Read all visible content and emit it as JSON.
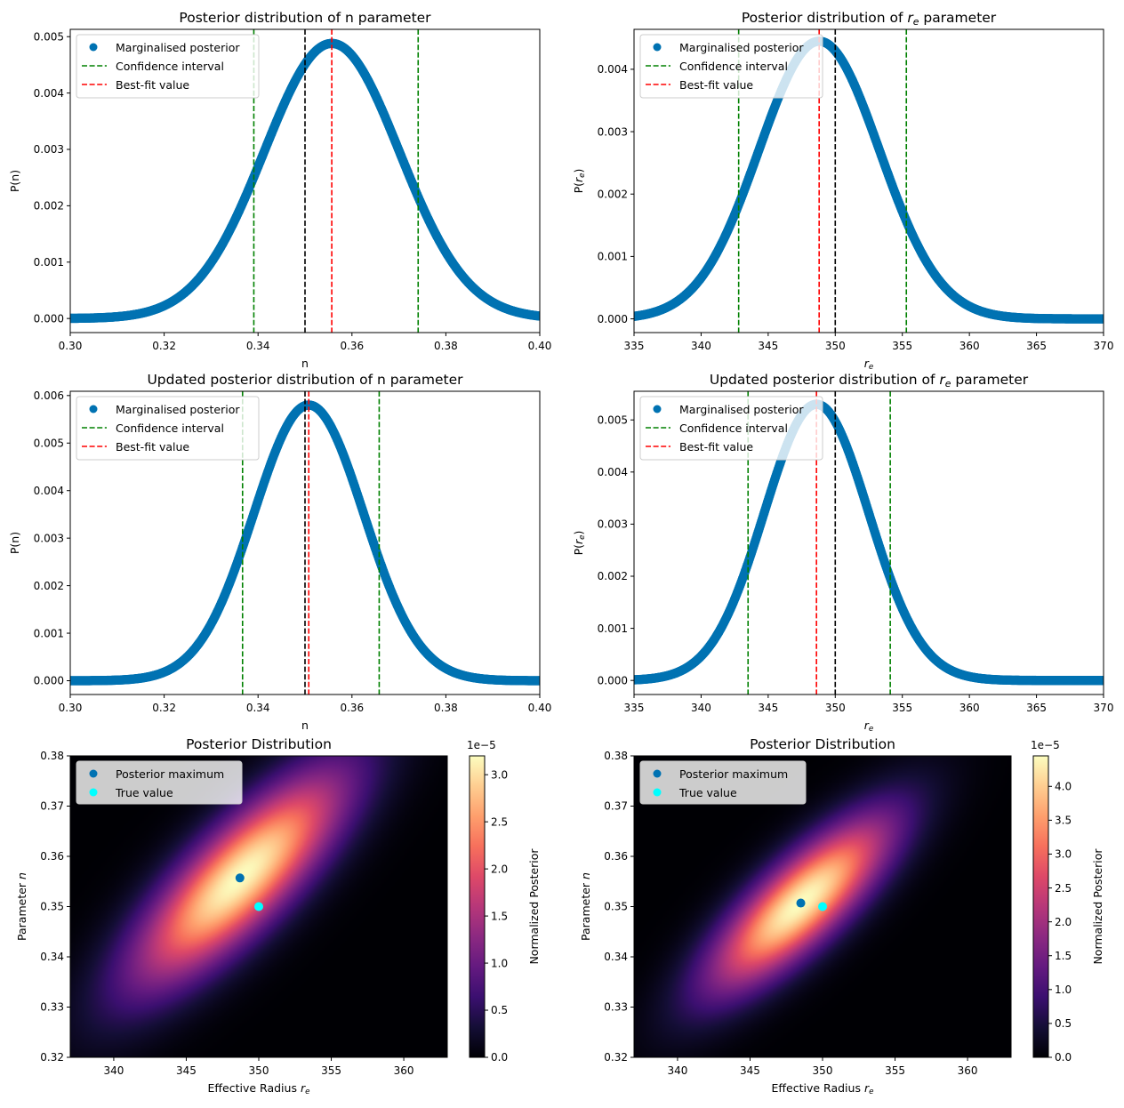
{
  "colors": {
    "posterior": "#0072b2",
    "confidence": "#008000",
    "bestfit": "#ff0000",
    "truth": "#000000",
    "true_marker": "#00ffff"
  },
  "chart_data": [
    {
      "type": "scatter",
      "title": "Posterior distribution of n parameter",
      "xlabel": "n",
      "ylabel": "P(n)",
      "xlim": [
        0.3,
        0.4
      ],
      "ylim": [
        -0.00025,
        0.00513
      ],
      "xticks": [
        "0.30",
        "0.32",
        "0.34",
        "0.36",
        "0.38",
        "0.40"
      ],
      "yticks": [
        "0.000",
        "0.001",
        "0.002",
        "0.003",
        "0.004",
        "0.005"
      ],
      "legend": [
        "Marginalised posterior",
        "Confidence interval",
        "Best-fit value"
      ],
      "legend_loc": "upper left",
      "curve": {
        "mean": 0.3557,
        "sigma": 0.0144,
        "peak": 0.00488
      },
      "vlines": {
        "confidence": [
          0.3391,
          0.3741
        ],
        "bestfit": 0.3557,
        "truth": 0.35
      }
    },
    {
      "type": "scatter",
      "title": "Posterior distribution of r_e parameter",
      "xlabel": "r_e",
      "ylabel": "P(r_e)",
      "xlim": [
        335,
        370
      ],
      "ylim": [
        -0.00022,
        0.00464
      ],
      "xticks": [
        "335",
        "340",
        "345",
        "350",
        "355",
        "360",
        "365",
        "370"
      ],
      "yticks": [
        "0.000",
        "0.001",
        "0.002",
        "0.003",
        "0.004"
      ],
      "legend": [
        "Marginalised posterior",
        "Confidence interval",
        "Best-fit value"
      ],
      "legend_loc": "upper left",
      "curve": {
        "mean": 348.8,
        "sigma": 4.5,
        "peak": 0.00445
      },
      "vlines": {
        "confidence": [
          342.8,
          355.3
        ],
        "bestfit": 348.8,
        "truth": 350
      }
    },
    {
      "type": "scatter",
      "title": "Updated posterior distribution of n parameter",
      "xlabel": "n",
      "ylabel": "P(n)",
      "xlim": [
        0.3,
        0.4
      ],
      "ylim": [
        -0.00029,
        0.00609
      ],
      "xticks": [
        "0.30",
        "0.32",
        "0.34",
        "0.36",
        "0.38",
        "0.40"
      ],
      "yticks": [
        "0.000",
        "0.001",
        "0.002",
        "0.003",
        "0.004",
        "0.005",
        "0.006"
      ],
      "legend": [
        "Marginalised posterior",
        "Confidence interval",
        "Best-fit value"
      ],
      "legend_loc": "upper left",
      "curve": {
        "mean": 0.3508,
        "sigma": 0.0117,
        "peak": 0.0058
      },
      "vlines": {
        "confidence": [
          0.3367,
          0.3658
        ],
        "bestfit": 0.3508,
        "truth": 0.35
      }
    },
    {
      "type": "scatter",
      "title": "Updated posterior distribution of r_e parameter",
      "xlabel": "r_e",
      "ylabel": "P(r_e)",
      "xlim": [
        335,
        370
      ],
      "ylim": [
        -0.00027,
        0.00555
      ],
      "xticks": [
        "335",
        "340",
        "345",
        "350",
        "355",
        "360",
        "365",
        "370"
      ],
      "yticks": [
        "0.000",
        "0.001",
        "0.002",
        "0.003",
        "0.004",
        "0.005"
      ],
      "legend": [
        "Marginalised posterior",
        "Confidence interval",
        "Best-fit value"
      ],
      "legend_loc": "upper left",
      "curve": {
        "mean": 348.6,
        "sigma": 3.9,
        "peak": 0.0053
      },
      "vlines": {
        "confidence": [
          343.5,
          354.1
        ],
        "bestfit": 348.6,
        "truth": 350
      }
    },
    {
      "type": "heatmap",
      "title": "Posterior Distribution",
      "xlabel": "Effective Radius r_e",
      "ylabel": "Parameter n",
      "xlim": [
        337,
        363
      ],
      "ylim": [
        0.32,
        0.38
      ],
      "xticks": [
        "340",
        "345",
        "350",
        "355",
        "360"
      ],
      "yticks": [
        "0.32",
        "0.33",
        "0.34",
        "0.35",
        "0.36",
        "0.37",
        "0.38"
      ],
      "colorbar": {
        "label": "Normalized Posterior",
        "offset": "1e−5",
        "max": 3.2,
        "ticks": [
          "0.0",
          "0.5",
          "1.0",
          "1.5",
          "2.0",
          "2.5",
          "3.0"
        ]
      },
      "legend": [
        "Posterior maximum",
        "True value"
      ],
      "legend_loc": "upper left",
      "posterior_maximum": {
        "x": 348.7,
        "y": 0.3557
      },
      "true_value": {
        "x": 350.0,
        "y": 0.35
      },
      "blob": {
        "cx": 348.7,
        "cy": 0.3557,
        "sx": 5.0,
        "sy": 0.0145,
        "rho": 0.8
      }
    },
    {
      "type": "heatmap",
      "title": "Posterior Distribution",
      "xlabel": "Effective Radius r_e",
      "ylabel": "Parameter n",
      "xlim": [
        337,
        363
      ],
      "ylim": [
        0.32,
        0.38
      ],
      "xticks": [
        "340",
        "345",
        "350",
        "355",
        "360"
      ],
      "yticks": [
        "0.32",
        "0.33",
        "0.34",
        "0.35",
        "0.36",
        "0.37",
        "0.38"
      ],
      "colorbar": {
        "label": "Normalized Posterior",
        "offset": "1e−5",
        "max": 4.45,
        "ticks": [
          "0.0",
          "0.5",
          "1.0",
          "1.5",
          "2.0",
          "2.5",
          "3.0",
          "3.5",
          "4.0"
        ]
      },
      "legend": [
        "Posterior maximum",
        "True value"
      ],
      "legend_loc": "upper left",
      "posterior_maximum": {
        "x": 348.5,
        "y": 0.3507
      },
      "true_value": {
        "x": 350.0,
        "y": 0.35
      },
      "blob": {
        "cx": 348.5,
        "cy": 0.3507,
        "sx": 4.3,
        "sy": 0.0118,
        "rho": 0.8
      }
    }
  ]
}
